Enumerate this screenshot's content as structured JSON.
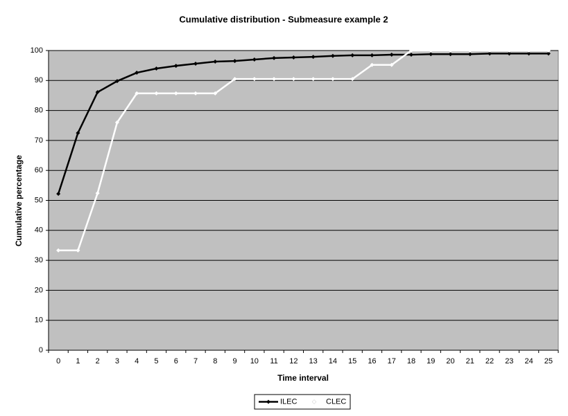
{
  "chart_data": {
    "type": "line",
    "title": "Cumulative distribution - Submeasure example 2",
    "x_label": "Time interval",
    "y_label": "Cumulative percentage",
    "categories": [
      "0",
      "1",
      "2",
      "3",
      "4",
      "5",
      "6",
      "7",
      "8",
      "9",
      "10",
      "11",
      "12",
      "13",
      "14",
      "15",
      "16",
      "17",
      "18",
      "19",
      "20",
      "21",
      "22",
      "23",
      "24",
      "25"
    ],
    "series": [
      {
        "name": "ILEC",
        "color": "#000000",
        "values": [
          52.2,
          72.5,
          86.1,
          89.8,
          92.6,
          94,
          94.9,
          95.6,
          96.3,
          96.5,
          97,
          97.5,
          97.7,
          97.9,
          98.2,
          98.4,
          98.4,
          98.6,
          98.6,
          98.8,
          98.8,
          98.8,
          99,
          99,
          99,
          99
        ]
      },
      {
        "name": "CLEC",
        "color": "#ffffff",
        "values": [
          33.3,
          33.3,
          52.4,
          76,
          85.7,
          85.7,
          85.7,
          85.7,
          85.7,
          90.5,
          90.5,
          90.5,
          90.5,
          90.5,
          90.5,
          90.5,
          95.2,
          95.2,
          100,
          100,
          100,
          100,
          100,
          100,
          100,
          100
        ]
      }
    ],
    "ylim": [
      0,
      100
    ],
    "yticks": [
      0,
      10,
      20,
      30,
      40,
      50,
      60,
      70,
      80,
      90,
      100
    ],
    "grid": true,
    "background": "#c0c0c0",
    "legend": "bottom"
  }
}
